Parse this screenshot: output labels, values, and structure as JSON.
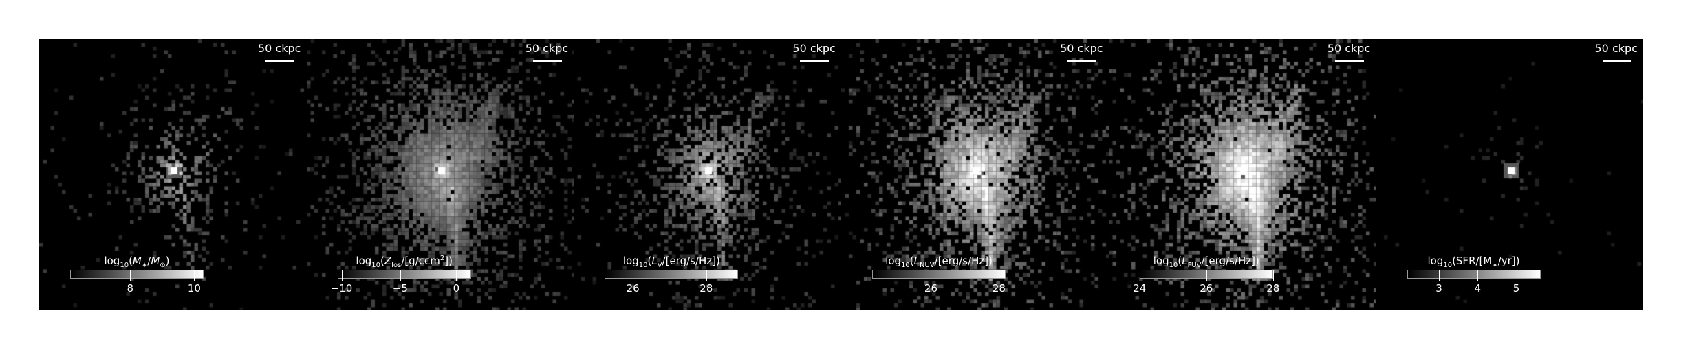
{
  "panels": [
    {
      "scalebar": "50 ckpc",
      "colorbar_label_html": "log<sub>10</sub>(<i>M</i><sub>∗</sub>/<i>M</i><sub>⊙</sub>)",
      "ticks": [
        {
          "label": "8",
          "frac": 0.45
        },
        {
          "label": "10",
          "frac": 0.93
        }
      ],
      "map": "stellar-mass"
    },
    {
      "scalebar": "50 ckpc",
      "colorbar_label_html": "log<sub>10</sub>(<i>Z</i><sub>los</sub>/[g/ccm<sup>2</sup>])",
      "ticks": [
        {
          "label": "−10",
          "frac": 0.03
        },
        {
          "label": "−5",
          "frac": 0.47
        },
        {
          "label": "0",
          "frac": 0.89
        }
      ],
      "map": "metallicity"
    },
    {
      "scalebar": "50 ckpc",
      "colorbar_label_html": "log<sub>10</sub>(<i>L</i><sub>V</sub>/[erg/s/Hz])",
      "ticks": [
        {
          "label": "26",
          "frac": 0.21
        },
        {
          "label": "28",
          "frac": 0.76
        }
      ],
      "map": "lum-v"
    },
    {
      "scalebar": "50 ckpc",
      "colorbar_label_html": "log<sub>10</sub>(<i>L</i><sub>NUV</sub>/[erg/s/Hz])",
      "ticks": [
        {
          "label": "26",
          "frac": 0.44
        },
        {
          "label": "28",
          "frac": 0.95
        }
      ],
      "map": "lum-nuv"
    },
    {
      "scalebar": "50 ckpc",
      "colorbar_label_html": "log<sub>10</sub>(<i>L</i><sub>FUV</sub>/[erg/s/Hz])",
      "ticks": [
        {
          "label": "24",
          "frac": 0.0
        },
        {
          "label": "26",
          "frac": 0.5
        },
        {
          "label": "28",
          "frac": 1.0
        }
      ],
      "map": "lum-fuv"
    },
    {
      "scalebar": "50 ckpc",
      "colorbar_label_html": "log<sub>10</sub>(SFR/[M<sub>∗</sub>/yr])",
      "ticks": [
        {
          "label": "3",
          "frac": 0.24
        },
        {
          "label": "4",
          "frac": 0.53
        },
        {
          "label": "5",
          "frac": 0.82
        }
      ],
      "map": "sfr"
    }
  ]
}
